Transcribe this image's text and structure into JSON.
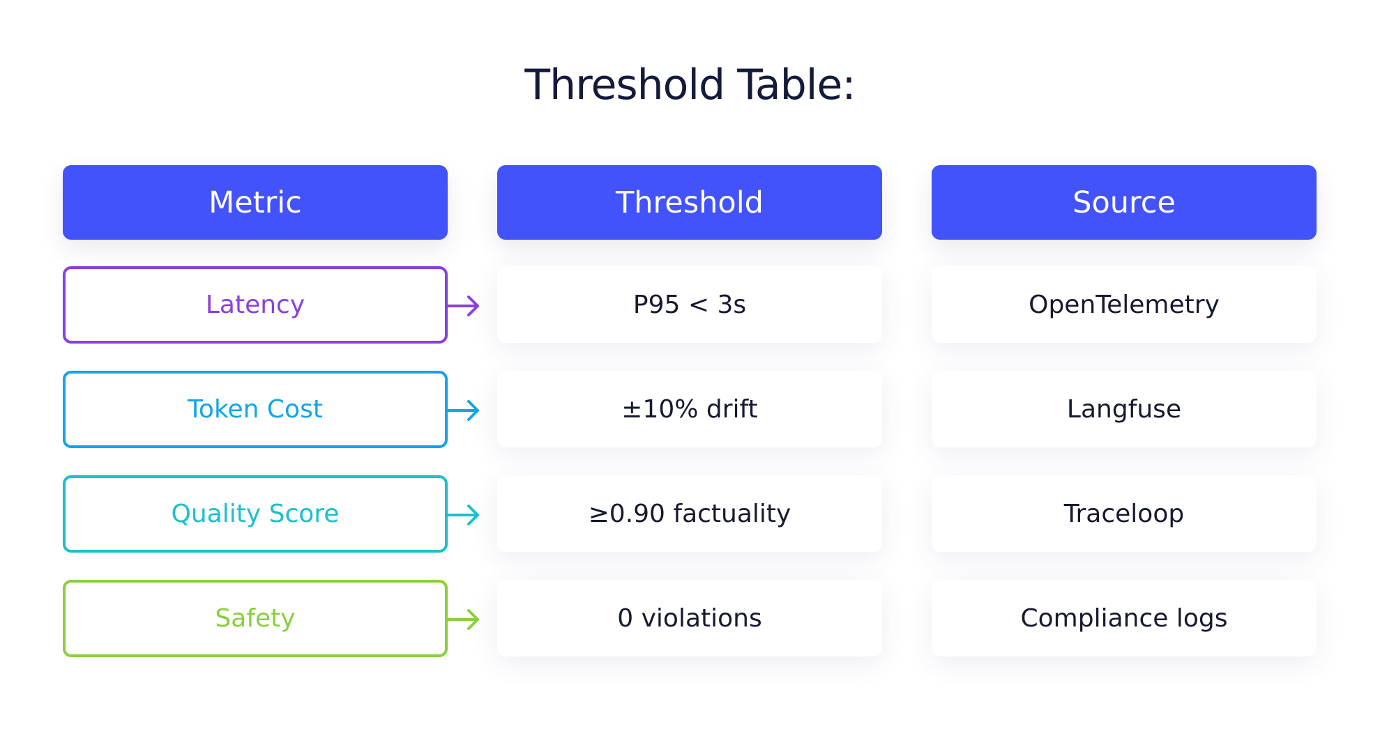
{
  "title": "Threshold Table:",
  "headers": [
    "Metric",
    "Threshold",
    "Source"
  ],
  "rows": [
    {
      "metric": "Latency",
      "threshold": "P95 < 3s",
      "source": "OpenTelemetry",
      "color": "#8a3fe0"
    },
    {
      "metric": "Token Cost",
      "threshold": "±10% drift",
      "source": "Langfuse",
      "color": "#12a4ec"
    },
    {
      "metric": "Quality Score",
      "threshold": "≥0.90 factuality",
      "source": "Traceloop",
      "color": "#1cbfd0"
    },
    {
      "metric": "Safety",
      "threshold": "0 violations",
      "source": "Compliance logs",
      "color": "#88d03c"
    }
  ]
}
